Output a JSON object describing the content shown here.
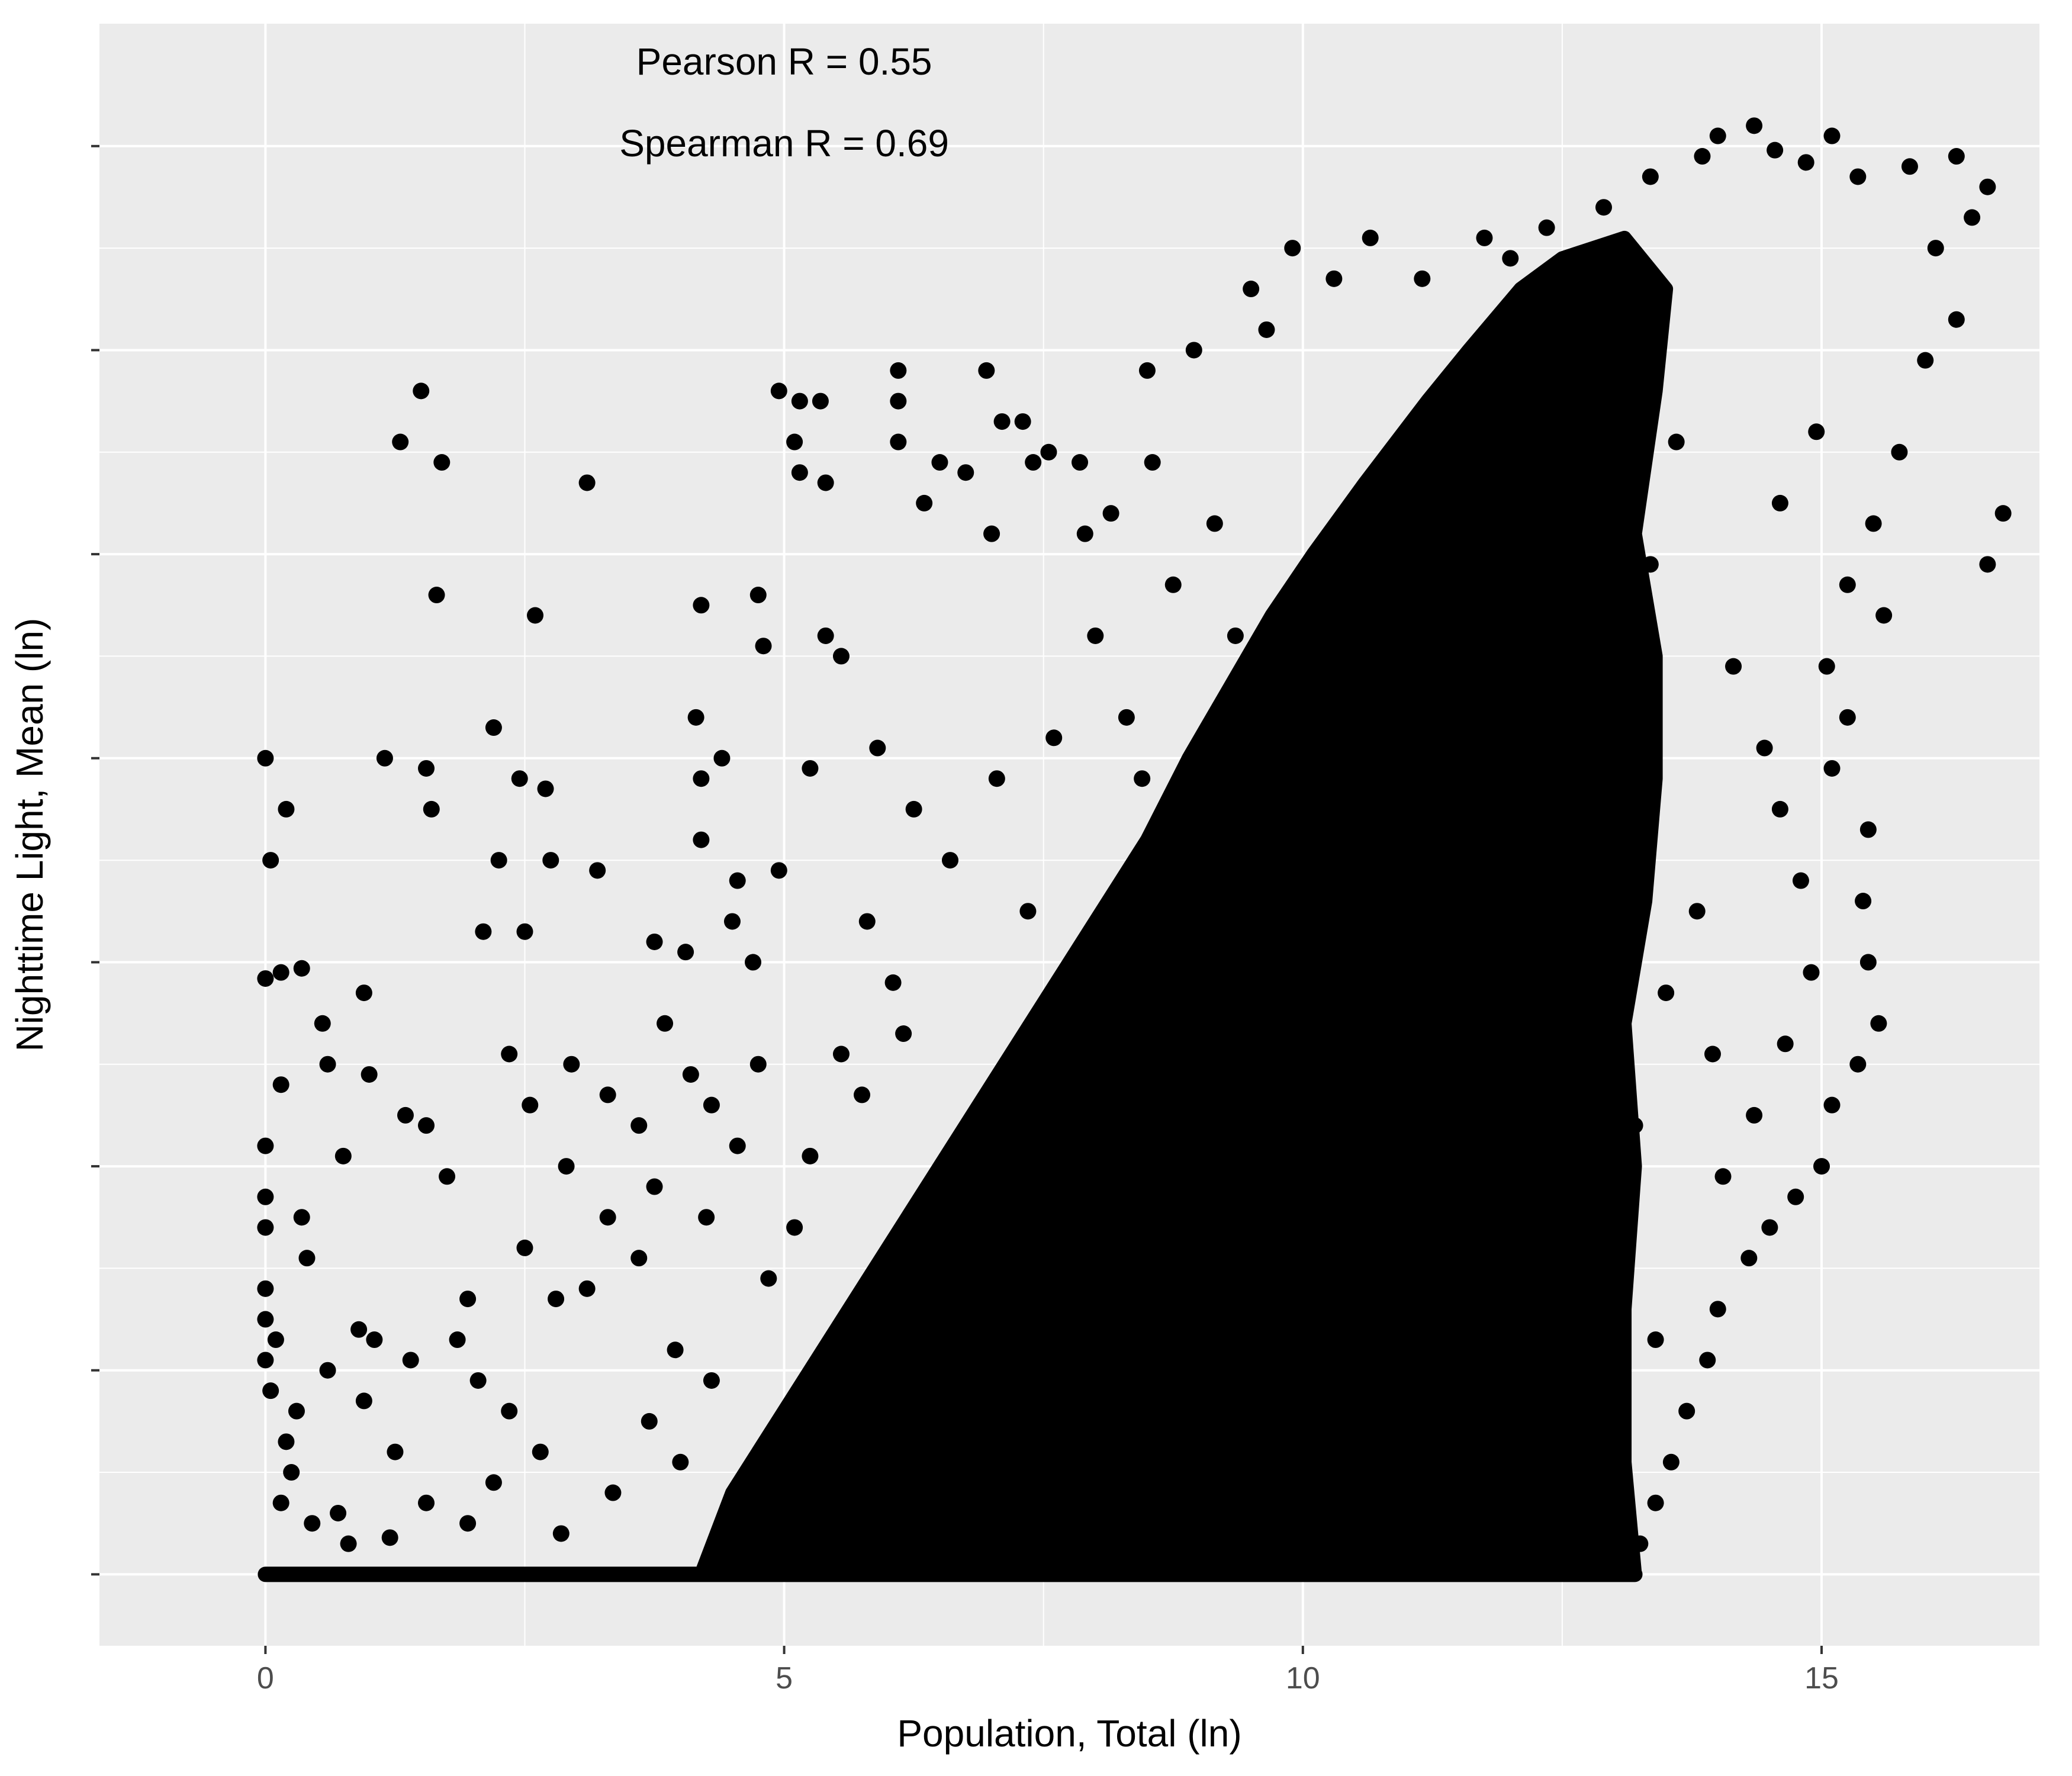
{
  "chart_data": {
    "type": "scatter",
    "xlabel": "Population, Total (ln)",
    "ylabel": "Nighttime Light, Mean (ln)",
    "xlim": [
      -1.6,
      17.1
    ],
    "ylim": [
      -0.35,
      7.6
    ],
    "x_ticks": [
      0,
      5,
      10,
      15
    ],
    "x_tick_labels": [
      "0",
      "5",
      "10",
      "15"
    ],
    "y_ticks": [
      0,
      1,
      2,
      3,
      4,
      5,
      6,
      7
    ],
    "y_tick_labels": [],
    "grid": true,
    "panel_background": "#EBEBEB",
    "point_color": "#000000",
    "annotations": [
      {
        "text": "Pearson R = 0.55",
        "x": 5,
        "y": 7.35
      },
      {
        "text": "Spearman R = 0.69",
        "x": 5,
        "y": 6.95
      }
    ],
    "points": [
      [
        1.5,
        5.8
      ],
      [
        1.3,
        5.55
      ],
      [
        1.7,
        5.45
      ],
      [
        3.1,
        5.35
      ],
      [
        1.65,
        4.8
      ],
      [
        2.6,
        4.7
      ],
      [
        0.0,
        4.0
      ],
      [
        1.15,
        4.0
      ],
      [
        1.55,
        3.95
      ],
      [
        1.6,
        3.75
      ],
      [
        2.2,
        4.15
      ],
      [
        2.45,
        3.9
      ],
      [
        2.7,
        3.85
      ],
      [
        0.2,
        3.75
      ],
      [
        0.05,
        3.5
      ],
      [
        2.25,
        3.5
      ],
      [
        2.75,
        3.5
      ],
      [
        3.2,
        3.45
      ],
      [
        2.1,
        3.15
      ],
      [
        2.5,
        3.15
      ],
      [
        0.0,
        2.92
      ],
      [
        0.15,
        2.95
      ],
      [
        0.35,
        2.97
      ],
      [
        0.55,
        2.7
      ],
      [
        0.95,
        2.85
      ],
      [
        0.6,
        2.5
      ],
      [
        1.0,
        2.45
      ],
      [
        0.15,
        2.4
      ],
      [
        1.35,
        2.25
      ],
      [
        1.55,
        2.2
      ],
      [
        0.75,
        2.05
      ],
      [
        1.75,
        1.95
      ],
      [
        0.35,
        1.75
      ],
      [
        0.4,
        1.55
      ],
      [
        0.0,
        2.1
      ],
      [
        0.0,
        1.85
      ],
      [
        0.0,
        1.7
      ],
      [
        0.0,
        1.4
      ],
      [
        0.0,
        1.25
      ],
      [
        0.0,
        1.05
      ],
      [
        0.1,
        1.15
      ],
      [
        0.6,
        1.0
      ],
      [
        0.9,
        1.2
      ],
      [
        1.05,
        1.15
      ],
      [
        1.4,
        1.05
      ],
      [
        0.95,
        0.85
      ],
      [
        1.25,
        0.6
      ],
      [
        0.25,
        0.5
      ],
      [
        0.45,
        0.25
      ],
      [
        0.8,
        0.15
      ],
      [
        0.2,
        0.65
      ],
      [
        0.15,
        0.35
      ],
      [
        0.3,
        0.8
      ],
      [
        0.05,
        0.9
      ],
      [
        0.7,
        0.3
      ],
      [
        2.35,
        2.55
      ],
      [
        2.55,
        2.3
      ],
      [
        2.95,
        2.5
      ],
      [
        3.3,
        2.35
      ],
      [
        3.85,
        2.7
      ],
      [
        4.1,
        2.45
      ],
      [
        3.6,
        2.2
      ],
      [
        2.9,
        2.0
      ],
      [
        3.3,
        1.75
      ],
      [
        3.6,
        1.55
      ],
      [
        3.1,
        1.4
      ],
      [
        2.8,
        1.35
      ],
      [
        2.5,
        1.6
      ],
      [
        1.95,
        1.35
      ],
      [
        1.85,
        1.15
      ],
      [
        2.05,
        0.95
      ],
      [
        2.35,
        0.8
      ],
      [
        2.65,
        0.6
      ],
      [
        2.2,
        0.45
      ],
      [
        1.95,
        0.25
      ],
      [
        1.55,
        0.35
      ],
      [
        1.2,
        0.18
      ],
      [
        2.85,
        0.2
      ],
      [
        3.35,
        0.4
      ],
      [
        3.7,
        0.75
      ],
      [
        3.95,
        1.1
      ],
      [
        4.0,
        0.55
      ],
      [
        4.3,
        0.95
      ],
      [
        3.75,
        1.9
      ],
      [
        4.25,
        1.75
      ],
      [
        4.55,
        2.1
      ],
      [
        4.3,
        2.3
      ],
      [
        4.05,
        3.05
      ],
      [
        3.75,
        3.1
      ],
      [
        4.2,
        3.6
      ],
      [
        4.55,
        3.4
      ],
      [
        4.7,
        3.0
      ],
      [
        4.2,
        3.9
      ],
      [
        4.5,
        3.2
      ],
      [
        4.95,
        3.45
      ],
      [
        4.95,
        5.8
      ],
      [
        5.15,
        5.75
      ],
      [
        5.35,
        5.75
      ],
      [
        5.1,
        5.55
      ],
      [
        5.15,
        5.4
      ],
      [
        5.4,
        5.35
      ],
      [
        4.75,
        4.8
      ],
      [
        4.2,
        4.75
      ],
      [
        4.8,
        4.55
      ],
      [
        5.4,
        4.6
      ],
      [
        5.55,
        4.5
      ],
      [
        4.15,
        4.2
      ],
      [
        4.4,
        4.0
      ],
      [
        5.25,
        3.95
      ],
      [
        6.1,
        5.9
      ],
      [
        6.1,
        5.75
      ],
      [
        6.1,
        5.55
      ],
      [
        6.35,
        5.25
      ],
      [
        6.5,
        5.45
      ],
      [
        6.75,
        5.4
      ],
      [
        6.95,
        5.9
      ],
      [
        7.1,
        5.65
      ],
      [
        7.3,
        5.65
      ],
      [
        7.4,
        5.45
      ],
      [
        7.55,
        5.5
      ],
      [
        7.0,
        5.1
      ],
      [
        7.85,
        5.45
      ],
      [
        7.9,
        5.1
      ],
      [
        8.15,
        5.2
      ],
      [
        8.55,
        5.45
      ],
      [
        8.5,
        5.9
      ],
      [
        8.95,
        6.0
      ],
      [
        9.5,
        6.3
      ],
      [
        9.65,
        6.1
      ],
      [
        9.9,
        6.5
      ],
      [
        10.3,
        6.35
      ],
      [
        10.65,
        6.55
      ],
      [
        11.15,
        6.35
      ],
      [
        11.75,
        6.55
      ],
      [
        12.0,
        6.45
      ],
      [
        12.35,
        6.6
      ],
      [
        12.9,
        6.7
      ],
      [
        13.35,
        6.85
      ],
      [
        13.85,
        6.95
      ],
      [
        14.0,
        7.05
      ],
      [
        14.35,
        7.1
      ],
      [
        14.55,
        6.98
      ],
      [
        14.85,
        6.92
      ],
      [
        15.1,
        7.05
      ],
      [
        15.35,
        6.85
      ],
      [
        15.85,
        6.9
      ],
      [
        16.3,
        6.95
      ],
      [
        16.6,
        6.8
      ],
      [
        16.45,
        6.65
      ],
      [
        16.1,
        6.5
      ],
      [
        16.3,
        6.15
      ],
      [
        16.0,
        5.95
      ],
      [
        16.75,
        5.2
      ],
      [
        16.6,
        4.95
      ],
      [
        15.75,
        5.5
      ],
      [
        15.5,
        5.15
      ],
      [
        15.25,
        4.85
      ],
      [
        15.6,
        4.7
      ],
      [
        15.05,
        4.45
      ],
      [
        15.25,
        4.2
      ],
      [
        15.1,
        3.95
      ],
      [
        15.45,
        3.65
      ],
      [
        15.4,
        3.3
      ],
      [
        15.45,
        3.0
      ],
      [
        15.55,
        2.7
      ],
      [
        15.35,
        2.5
      ],
      [
        15.1,
        2.3
      ],
      [
        15.0,
        2.0
      ],
      [
        14.75,
        1.85
      ],
      [
        14.5,
        1.7
      ],
      [
        14.3,
        1.55
      ],
      [
        14.0,
        1.3
      ],
      [
        13.9,
        1.05
      ],
      [
        13.7,
        0.8
      ],
      [
        13.55,
        0.55
      ],
      [
        13.4,
        0.35
      ],
      [
        13.25,
        0.15
      ],
      [
        13.1,
        0.05
      ],
      [
        5.8,
        3.2
      ],
      [
        6.05,
        2.9
      ],
      [
        5.9,
        4.05
      ],
      [
        6.25,
        3.75
      ],
      [
        6.6,
        3.5
      ],
      [
        7.05,
        3.9
      ],
      [
        7.35,
        3.25
      ],
      [
        7.6,
        4.1
      ],
      [
        8.0,
        4.6
      ],
      [
        8.3,
        4.2
      ],
      [
        8.75,
        4.85
      ],
      [
        8.45,
        3.9
      ],
      [
        9.15,
        5.15
      ],
      [
        9.35,
        4.6
      ],
      [
        5.25,
        2.05
      ],
      [
        5.55,
        2.55
      ],
      [
        5.75,
        2.35
      ],
      [
        6.15,
        2.65
      ],
      [
        5.1,
        1.7
      ],
      [
        4.75,
        2.5
      ],
      [
        4.85,
        1.45
      ],
      [
        14.8,
        3.4
      ],
      [
        14.6,
        3.75
      ],
      [
        14.45,
        4.05
      ],
      [
        14.15,
        4.45
      ],
      [
        14.65,
        2.6
      ],
      [
        14.35,
        2.25
      ],
      [
        14.05,
        1.95
      ],
      [
        13.95,
        2.55
      ],
      [
        14.9,
        2.95
      ],
      [
        14.6,
        5.25
      ],
      [
        14.95,
        5.6
      ],
      [
        13.6,
        5.55
      ],
      [
        13.35,
        4.95
      ],
      [
        13.8,
        3.25
      ],
      [
        13.5,
        2.85
      ],
      [
        13.2,
        2.2
      ],
      [
        13.1,
        1.55
      ],
      [
        13.4,
        1.15
      ]
    ],
    "dense_region": [
      [
        4.2,
        0.0
      ],
      [
        13.2,
        0.0
      ],
      [
        13.1,
        0.55
      ],
      [
        13.1,
        1.3
      ],
      [
        13.2,
        2.0
      ],
      [
        13.1,
        2.7
      ],
      [
        13.3,
        3.3
      ],
      [
        13.4,
        3.9
      ],
      [
        13.4,
        4.5
      ],
      [
        13.2,
        5.1
      ],
      [
        13.4,
        5.8
      ],
      [
        13.5,
        6.3
      ],
      [
        13.1,
        6.55
      ],
      [
        12.5,
        6.45
      ],
      [
        12.1,
        6.3
      ],
      [
        11.6,
        6.0
      ],
      [
        11.2,
        5.75
      ],
      [
        10.6,
        5.35
      ],
      [
        10.1,
        5.0
      ],
      [
        9.7,
        4.7
      ],
      [
        9.3,
        4.35
      ],
      [
        8.9,
        4.0
      ],
      [
        8.5,
        3.6
      ],
      [
        8.0,
        3.2
      ],
      [
        7.5,
        2.8
      ],
      [
        7.0,
        2.4
      ],
      [
        6.5,
        2.0
      ],
      [
        6.0,
        1.6
      ],
      [
        5.5,
        1.2
      ],
      [
        5.0,
        0.8
      ],
      [
        4.5,
        0.4
      ]
    ],
    "floor_band": {
      "x_start": 0.0,
      "x_end": 13.2,
      "y": 0.0
    }
  }
}
